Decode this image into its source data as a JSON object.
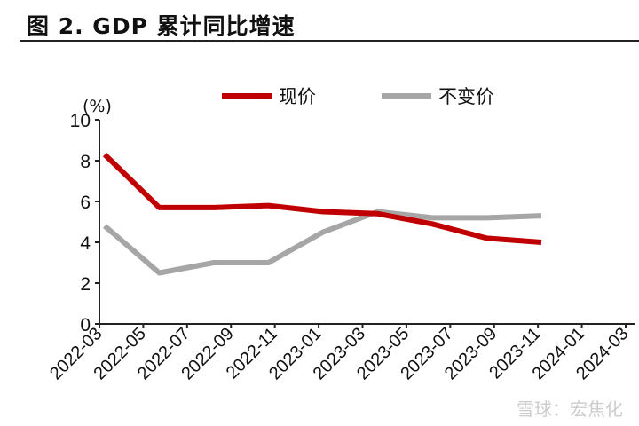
{
  "title": "图 2. GDP 累计同比增速",
  "watermark": "雪球：宏焦化",
  "chart_data": {
    "type": "line",
    "ylabel": "(%)",
    "ylim": [
      0,
      10
    ],
    "yticks": [
      0,
      2,
      4,
      6,
      8,
      10
    ],
    "xtick_labels": [
      "2022-03",
      "2022-05",
      "2022-07",
      "2022-09",
      "2022-11",
      "2023-01",
      "2023-03",
      "2023-05",
      "2023-07",
      "2023-09",
      "2023-11",
      "2024-01",
      "2024-03"
    ],
    "legend": "top",
    "series": [
      {
        "name": "现价",
        "color": "#c00000",
        "values": [
          8.3,
          5.7,
          5.7,
          5.8,
          5.5,
          5.4,
          4.9,
          4.2,
          4.0
        ]
      },
      {
        "name": "不变价",
        "color": "#a6a6a6",
        "values": [
          4.8,
          2.5,
          3.0,
          3.0,
          4.5,
          5.5,
          5.2,
          5.2,
          5.3
        ]
      }
    ]
  }
}
